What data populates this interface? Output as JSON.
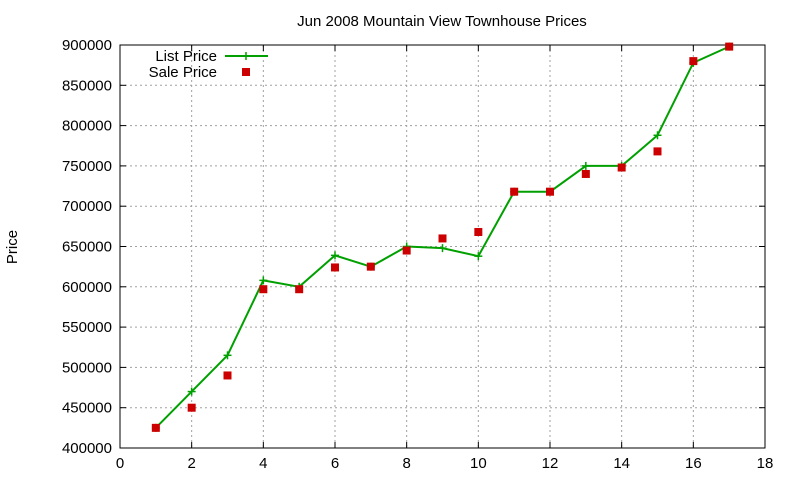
{
  "chart_data": {
    "type": "line",
    "title": "Jun 2008 Mountain View Townhouse Prices",
    "xlabel": "",
    "ylabel": "Price",
    "xlim": [
      0,
      18
    ],
    "ylim": [
      400000,
      900000
    ],
    "xticks": [
      0,
      2,
      4,
      6,
      8,
      10,
      12,
      14,
      16,
      18
    ],
    "yticks": [
      400000,
      450000,
      500000,
      550000,
      600000,
      650000,
      700000,
      750000,
      800000,
      850000,
      900000
    ],
    "grid": true,
    "legend_position": "top-left",
    "series": [
      {
        "name": "List Price",
        "style": "line+plus",
        "color": "#00a000",
        "x": [
          1,
          2,
          3,
          4,
          5,
          6,
          7,
          8,
          9,
          10,
          11,
          12,
          13,
          14,
          15,
          16,
          17
        ],
        "y": [
          425000,
          470000,
          515000,
          608000,
          600000,
          639000,
          625000,
          650000,
          648000,
          638000,
          718000,
          718000,
          750000,
          750000,
          788000,
          878000,
          898000
        ]
      },
      {
        "name": "Sale Price",
        "style": "square",
        "color": "#cc0000",
        "x": [
          1,
          2,
          3,
          4,
          5,
          6,
          7,
          8,
          9,
          10,
          11,
          12,
          13,
          14,
          15,
          16,
          17
        ],
        "y": [
          425000,
          450000,
          490000,
          597000,
          597000,
          624000,
          625000,
          645000,
          660000,
          668000,
          718000,
          718000,
          740000,
          748000,
          768000,
          880000,
          898000
        ]
      }
    ]
  }
}
